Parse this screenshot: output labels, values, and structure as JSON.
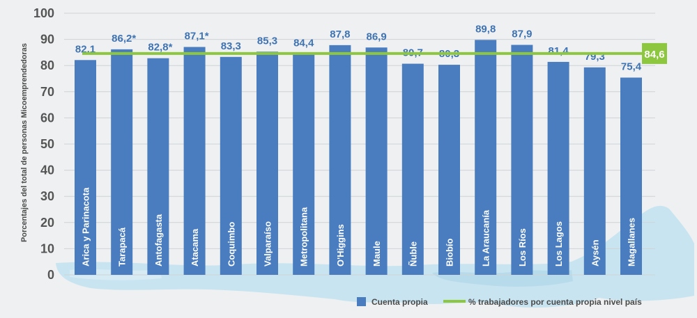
{
  "chart_data": {
    "type": "bar",
    "ylabel": "Porcentajes del total de personas Micoemprendedoras",
    "ylim": [
      0,
      100
    ],
    "yticks": [
      0,
      10,
      20,
      30,
      40,
      50,
      60,
      70,
      80,
      90,
      100
    ],
    "grid": true,
    "categories": [
      "Arica y Parinacota",
      "Tarapacá",
      "Antofagasta",
      "Atacama",
      "Coquimbo",
      "Valparaíso",
      "Metropolitana",
      "O'Higgins",
      "Maule",
      "Ñuble",
      "Biobío",
      "La Araucanía",
      "Los Ríos",
      "Los Lagos",
      "Aysén",
      "Magallanes"
    ],
    "series": [
      {
        "name": "Cuenta propia",
        "color": "#4a7dbf",
        "values": [
          82.1,
          86.2,
          82.8,
          87.1,
          83.3,
          85.3,
          84.4,
          87.8,
          86.9,
          80.7,
          80.3,
          89.8,
          87.9,
          81.4,
          79.3,
          75.4
        ],
        "labels": [
          "82,1",
          "86,2*",
          "82,8*",
          "87,1*",
          "83,3",
          "85,3",
          "84,4",
          "87,8",
          "86,9",
          "80,7",
          "80,3",
          "89,8",
          "87,9",
          "81,4",
          "79,3",
          "75,4"
        ]
      }
    ],
    "reference_line": {
      "name": "% trabajadores por cuenta propia nivel país",
      "value": 84.6,
      "label": "84,6",
      "color": "#8dc63f"
    },
    "legend_position": "bottom-right"
  }
}
